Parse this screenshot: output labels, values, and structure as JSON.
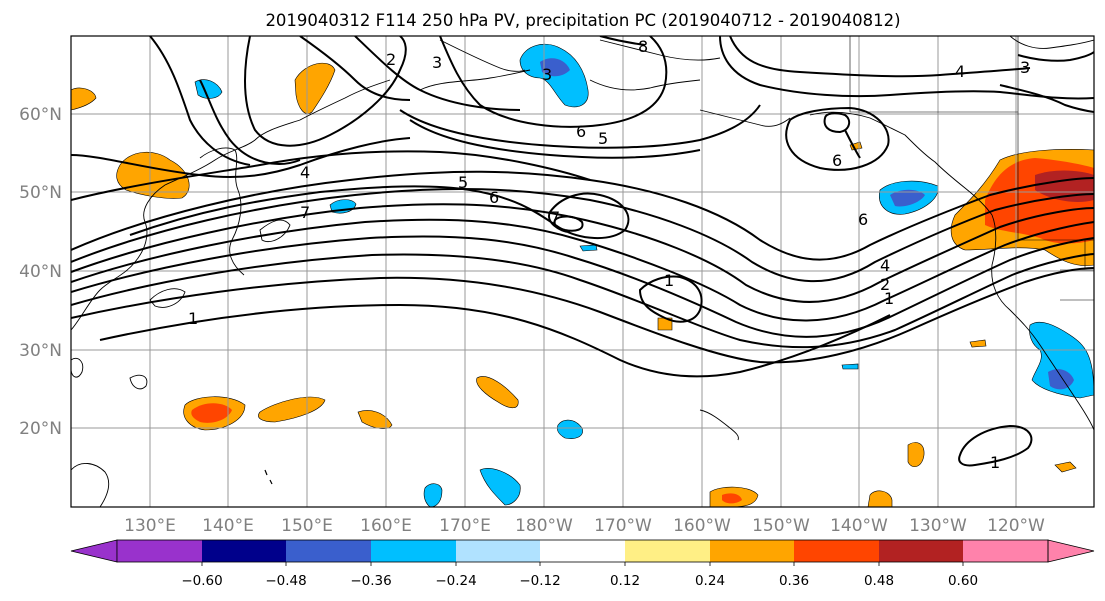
{
  "title": "2019040312 F114 250 hPa PV, precipitation PC (2019040712 - 2019040812)",
  "map": {
    "lon_labels": [
      "130°E",
      "140°E",
      "150°E",
      "160°E",
      "170°E",
      "180°W",
      "170°W",
      "160°W",
      "150°W",
      "140°W",
      "130°W",
      "120°W"
    ],
    "lat_labels": [
      "60°N",
      "50°N",
      "40°N",
      "30°N",
      "20°N"
    ],
    "contour_labels": [
      "2",
      "3",
      "8",
      "3",
      "4",
      "3",
      "6",
      "5",
      "4",
      "5",
      "6",
      "7",
      "7",
      "6",
      "6",
      "1",
      "1",
      "4",
      "2",
      "1",
      "1"
    ],
    "grid": true,
    "colors": {
      "orange": "#ffa500",
      "orange_red": "#ff4500",
      "dark_red": "#b22222",
      "yellow": "#fff08a",
      "light_blue": "#00bfff",
      "royal_blue": "#3a5fcd",
      "pale_blue": "#b0e2ff",
      "navy": "#00008b",
      "purple": "#9932cc",
      "pink": "#ff82ab",
      "contour": "#000000",
      "grid": "#999999",
      "coast": "#000000"
    }
  },
  "colorbar": {
    "ticks": [
      "−0.60",
      "−0.48",
      "−0.36",
      "−0.24",
      "−0.12",
      "0.12",
      "0.24",
      "0.36",
      "0.48",
      "0.60"
    ],
    "colors": [
      "#9932cc",
      "#00008b",
      "#3a5fcd",
      "#00bfff",
      "#b0e2ff",
      "#ffffff",
      "#ffef85",
      "#ffa500",
      "#ff4500",
      "#b22222",
      "#ff82ab"
    ]
  }
}
